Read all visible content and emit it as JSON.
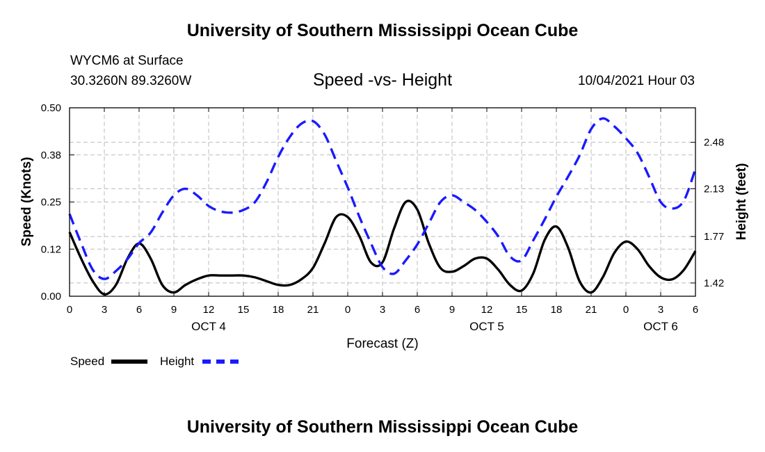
{
  "header": {
    "title": "University of Southern Mississippi Ocean Cube",
    "station": "WYCM6 at Surface",
    "coords": "30.3260N  89.3260W",
    "chart_title": "Speed -vs- Height",
    "datetime": "10/04/2021 Hour 03"
  },
  "footer": {
    "title": "University of Southern Mississippi Ocean Cube"
  },
  "legend": {
    "speed_label": "Speed",
    "height_label": "Height"
  },
  "colors": {
    "speed": "#000000",
    "height": "#1a1aff",
    "grid": "#bbbbbb"
  },
  "chart_data": {
    "type": "line",
    "title": "Speed -vs- Height",
    "xlabel": "Forecast (Z)",
    "ylabel": "Speed (Knots)",
    "y2label": "Height (feet)",
    "x_hours": [
      0,
      3,
      6,
      9,
      12,
      15,
      18,
      21,
      24,
      27,
      30,
      33,
      36,
      39,
      42,
      45,
      48,
      51,
      54
    ],
    "x_tick_labels": [
      "0",
      "3",
      "6",
      "9",
      "12",
      "15",
      "18",
      "21",
      "0",
      "3",
      "6",
      "9",
      "12",
      "15",
      "18",
      "21",
      "0",
      "3",
      "6"
    ],
    "date_labels": [
      {
        "label": "OCT 4",
        "hour": 12
      },
      {
        "label": "OCT 5",
        "hour": 36
      },
      {
        "label": "OCT 6",
        "hour": 51
      }
    ],
    "xlim": [
      0,
      54
    ],
    "ylim": [
      0,
      0.5
    ],
    "y_ticks": [
      "0.00",
      "0.12",
      "0.25",
      "0.38",
      "0.50"
    ],
    "y_tick_values": [
      0,
      0.125,
      0.25,
      0.375,
      0.5
    ],
    "y2lim": [
      1.32,
      2.74
    ],
    "y2_ticks": [
      "1.42",
      "1.77",
      "2.13",
      "2.48"
    ],
    "y2_tick_values": [
      1.42,
      1.77,
      2.13,
      2.48
    ],
    "grid": true,
    "series": [
      {
        "name": "Speed",
        "axis": "left",
        "style": "solid",
        "x": [
          0,
          1,
          2,
          3,
          4,
          5,
          6,
          7,
          8,
          9,
          10,
          11,
          12,
          13,
          14,
          15,
          16,
          17,
          18,
          19,
          20,
          21,
          22,
          23,
          24,
          25,
          26,
          27,
          28,
          29,
          30,
          31,
          32,
          33,
          34,
          35,
          36,
          37,
          38,
          39,
          40,
          41,
          42,
          43,
          44,
          45,
          46,
          47,
          48,
          49,
          50,
          51,
          52,
          53,
          54
        ],
        "values": [
          0.17,
          0.1,
          0.04,
          0.005,
          0.03,
          0.1,
          0.14,
          0.1,
          0.03,
          0.01,
          0.03,
          0.045,
          0.055,
          0.055,
          0.055,
          0.055,
          0.05,
          0.04,
          0.03,
          0.03,
          0.045,
          0.075,
          0.14,
          0.21,
          0.21,
          0.16,
          0.09,
          0.09,
          0.18,
          0.25,
          0.23,
          0.14,
          0.075,
          0.065,
          0.08,
          0.1,
          0.1,
          0.07,
          0.03,
          0.015,
          0.06,
          0.15,
          0.185,
          0.13,
          0.04,
          0.01,
          0.05,
          0.115,
          0.145,
          0.125,
          0.08,
          0.05,
          0.045,
          0.07,
          0.12
        ]
      },
      {
        "name": "Height",
        "axis": "right",
        "style": "dashed",
        "x": [
          0,
          1,
          2,
          3,
          4,
          5,
          6,
          7,
          8,
          9,
          10,
          11,
          12,
          13,
          14,
          15,
          16,
          17,
          18,
          19,
          20,
          21,
          22,
          23,
          24,
          25,
          26,
          27,
          28,
          29,
          30,
          31,
          32,
          33,
          34,
          35,
          36,
          37,
          38,
          39,
          40,
          41,
          42,
          43,
          44,
          45,
          46,
          47,
          48,
          49,
          50,
          51,
          52,
          53,
          54
        ],
        "values": [
          1.94,
          1.72,
          1.52,
          1.45,
          1.51,
          1.6,
          1.72,
          1.8,
          1.95,
          2.08,
          2.13,
          2.08,
          2.0,
          1.96,
          1.95,
          1.97,
          2.03,
          2.18,
          2.37,
          2.52,
          2.62,
          2.64,
          2.54,
          2.34,
          2.14,
          1.92,
          1.72,
          1.54,
          1.49,
          1.59,
          1.71,
          1.87,
          2.03,
          2.08,
          2.03,
          1.97,
          1.88,
          1.77,
          1.62,
          1.59,
          1.74,
          1.9,
          2.07,
          2.22,
          2.38,
          2.58,
          2.66,
          2.6,
          2.51,
          2.4,
          2.22,
          2.03,
          1.98,
          2.04,
          2.28
        ]
      }
    ]
  }
}
